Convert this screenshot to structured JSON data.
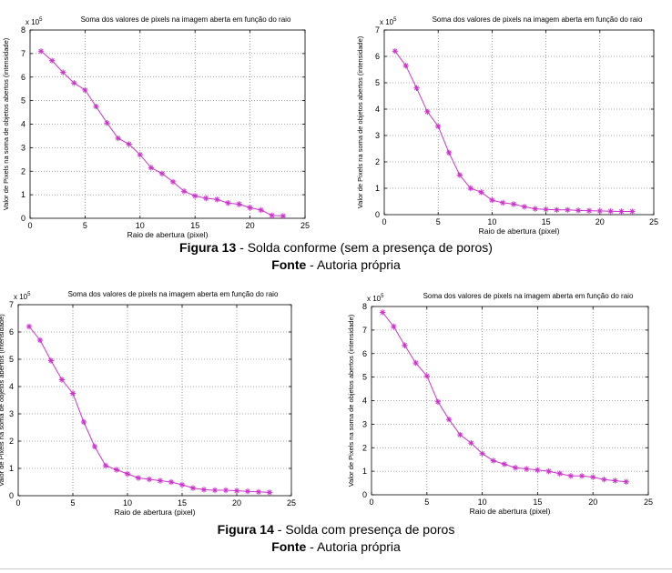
{
  "chart_data": [
    {
      "type": "line",
      "title": "Soma dos valores de pixels na imagem aberta em função do raio",
      "xlabel": "Raio de abertura (pixel)",
      "ylabel": "Valor de Pixels na soma de objetos abertos (intensidade)",
      "multiplier_label": "x 10",
      "multiplier_exp": "5",
      "xlim": [
        0,
        25
      ],
      "ylim": [
        0,
        8
      ],
      "xticks": [
        0,
        5,
        10,
        15,
        20,
        25
      ],
      "yticks": [
        0,
        1,
        2,
        3,
        4,
        5,
        6,
        7,
        8
      ],
      "grid": true,
      "color": "#cc33cc",
      "series": [
        {
          "x": [
            1,
            2,
            3,
            4,
            5,
            6,
            7,
            8,
            9,
            10,
            11,
            12,
            13,
            14,
            15,
            16,
            17,
            18,
            19,
            20,
            21,
            22,
            23
          ],
          "values": [
            7.1,
            6.7,
            6.2,
            5.75,
            5.45,
            4.75,
            4.05,
            3.4,
            3.15,
            2.7,
            2.15,
            1.9,
            1.55,
            1.15,
            0.95,
            0.85,
            0.8,
            0.65,
            0.6,
            0.45,
            0.35,
            0.12,
            0.1
          ]
        }
      ]
    },
    {
      "type": "line",
      "title": "Soma dos valores de pixels na imagem aberta em função do raio",
      "xlabel": "Raio de abertura (pixel)",
      "ylabel": "Valor de Pixels na soma de objetos abertos (intensidade)",
      "multiplier_label": "x 10",
      "multiplier_exp": "5",
      "xlim": [
        0,
        25
      ],
      "ylim": [
        0,
        7
      ],
      "xticks": [
        0,
        5,
        10,
        15,
        20,
        25
      ],
      "yticks": [
        0,
        1,
        2,
        3,
        4,
        5,
        6,
        7
      ],
      "grid": true,
      "color": "#cc33cc",
      "series": [
        {
          "x": [
            1,
            2,
            3,
            4,
            5,
            6,
            7,
            8,
            9,
            10,
            11,
            12,
            13,
            14,
            15,
            16,
            17,
            18,
            19,
            20,
            21,
            22,
            23
          ],
          "values": [
            6.2,
            5.65,
            4.8,
            3.9,
            3.35,
            2.35,
            1.5,
            1.0,
            0.85,
            0.55,
            0.45,
            0.4,
            0.3,
            0.22,
            0.2,
            0.18,
            0.18,
            0.16,
            0.15,
            0.14,
            0.13,
            0.12,
            0.12
          ]
        }
      ]
    },
    {
      "type": "line",
      "title": "Soma dos valores de pixels na imagem aberta em função do raio",
      "xlabel": "Raio de abertura (pixel)",
      "ylabel": "Valor de Pixels na soma de objetos abertos (intensidade)",
      "multiplier_label": "x 10",
      "multiplier_exp": "5",
      "xlim": [
        0,
        25
      ],
      "ylim": [
        0,
        7
      ],
      "xticks": [
        0,
        5,
        10,
        15,
        20,
        25
      ],
      "yticks": [
        0,
        1,
        2,
        3,
        4,
        5,
        6,
        7
      ],
      "grid": true,
      "color": "#cc33cc",
      "series": [
        {
          "x": [
            1,
            2,
            3,
            4,
            5,
            6,
            7,
            8,
            9,
            10,
            11,
            12,
            13,
            14,
            15,
            16,
            17,
            18,
            19,
            20,
            21,
            22,
            23
          ],
          "values": [
            6.2,
            5.7,
            4.95,
            4.25,
            3.75,
            2.7,
            1.8,
            1.1,
            0.95,
            0.8,
            0.65,
            0.6,
            0.55,
            0.5,
            0.4,
            0.28,
            0.22,
            0.2,
            0.2,
            0.18,
            0.16,
            0.14,
            0.12
          ]
        }
      ]
    },
    {
      "type": "line",
      "title": "Soma dos valores de pixels na imagem aberta em função do raio",
      "xlabel": "Raio de abertura (pixel)",
      "ylabel": "Valor de Pixels na soma de objetos abertos (intensidade)",
      "multiplier_label": "x 10",
      "multiplier_exp": "5",
      "xlim": [
        0,
        25
      ],
      "ylim": [
        0,
        8
      ],
      "xticks": [
        0,
        5,
        10,
        15,
        20,
        25
      ],
      "yticks": [
        0,
        1,
        2,
        3,
        4,
        5,
        6,
        7,
        8
      ],
      "grid": true,
      "color": "#cc33cc",
      "series": [
        {
          "x": [
            1,
            2,
            3,
            4,
            5,
            6,
            7,
            8,
            9,
            10,
            11,
            12,
            13,
            14,
            15,
            16,
            17,
            18,
            19,
            20,
            21,
            22,
            23
          ],
          "values": [
            7.75,
            7.15,
            6.35,
            5.6,
            5.05,
            3.95,
            3.2,
            2.55,
            2.2,
            1.75,
            1.45,
            1.3,
            1.15,
            1.1,
            1.05,
            1.0,
            0.9,
            0.8,
            0.8,
            0.75,
            0.65,
            0.6,
            0.55
          ]
        }
      ]
    }
  ],
  "captions": {
    "fig13_label": "Figura 13",
    "fig13_text": " - Solda conforme (sem a presença de poros)",
    "fig13_source_label": "Fonte",
    "fig13_source_text": " - Autoria própria",
    "fig14_label": "Figura 14",
    "fig14_text": " - Solda com presença de poros",
    "fig14_source_label": "Fonte",
    "fig14_source_text": " - Autoria própria"
  }
}
